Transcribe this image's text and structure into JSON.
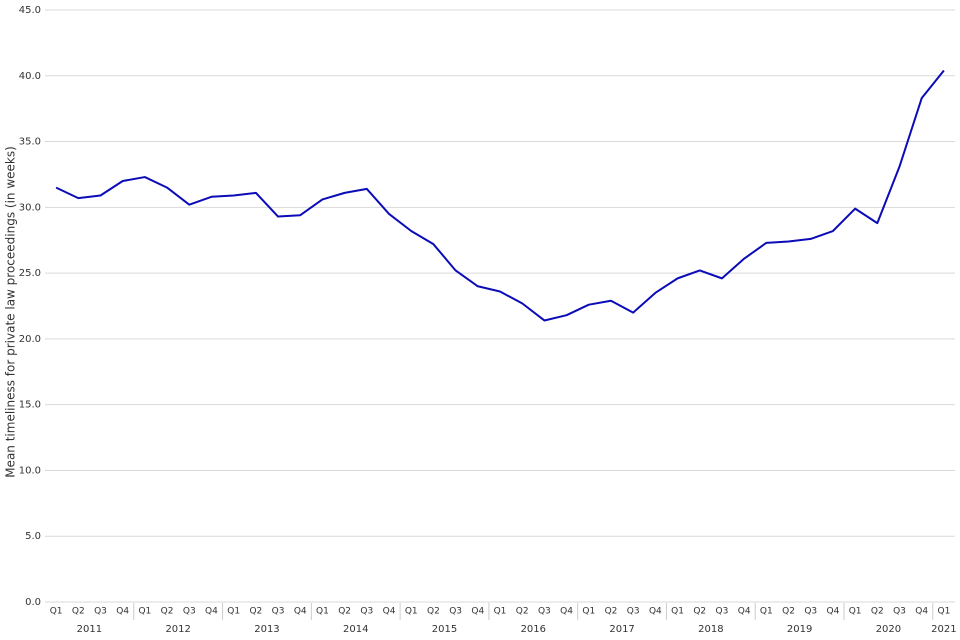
{
  "chart_data": {
    "type": "line",
    "y_label": "Mean timeliness for private law proceedings (in weeks)",
    "categories": [
      "Q1",
      "Q2",
      "Q3",
      "Q4",
      "Q1",
      "Q2",
      "Q3",
      "Q4",
      "Q1",
      "Q2",
      "Q3",
      "Q4",
      "Q1",
      "Q2",
      "Q3",
      "Q4",
      "Q1",
      "Q2",
      "Q3",
      "Q4",
      "Q1",
      "Q2",
      "Q3",
      "Q4",
      "Q1",
      "Q2",
      "Q3",
      "Q4",
      "Q1",
      "Q2",
      "Q3",
      "Q4",
      "Q1",
      "Q2",
      "Q3",
      "Q4",
      "Q1",
      "Q2",
      "Q3",
      "Q4",
      "Q1"
    ],
    "years": [
      "2011",
      "2012",
      "2013",
      "2014",
      "2015",
      "2016",
      "2017",
      "2018",
      "2019",
      "2020",
      "2021"
    ],
    "series": [
      {
        "name": "Mean timeliness",
        "color": "#0b0bb8",
        "values": [
          31.5,
          30.7,
          30.9,
          32.0,
          32.3,
          31.5,
          30.2,
          30.8,
          30.9,
          31.1,
          29.3,
          29.4,
          30.6,
          31.1,
          31.4,
          29.5,
          28.2,
          27.2,
          25.2,
          24.0,
          23.6,
          22.7,
          21.4,
          21.8,
          22.6,
          22.9,
          22.0,
          23.5,
          24.6,
          25.2,
          24.6,
          26.1,
          27.3,
          27.4,
          27.6,
          28.2,
          29.9,
          28.8,
          33.1,
          38.3,
          40.4
        ]
      }
    ],
    "ylim": [
      0,
      45
    ],
    "yticks": [
      {
        "value": 0,
        "label": "0.0"
      },
      {
        "value": 5,
        "label": "5.0"
      },
      {
        "value": 10,
        "label": "10.0"
      },
      {
        "value": 15,
        "label": "15.0"
      },
      {
        "value": 20,
        "label": "20.0"
      },
      {
        "value": 25,
        "label": "25.0"
      },
      {
        "value": 30,
        "label": "30.0"
      },
      {
        "value": 35,
        "label": "35.0"
      },
      {
        "value": 40,
        "label": "40.0"
      },
      {
        "value": 45,
        "label": "45.0"
      }
    ],
    "grid": true
  }
}
